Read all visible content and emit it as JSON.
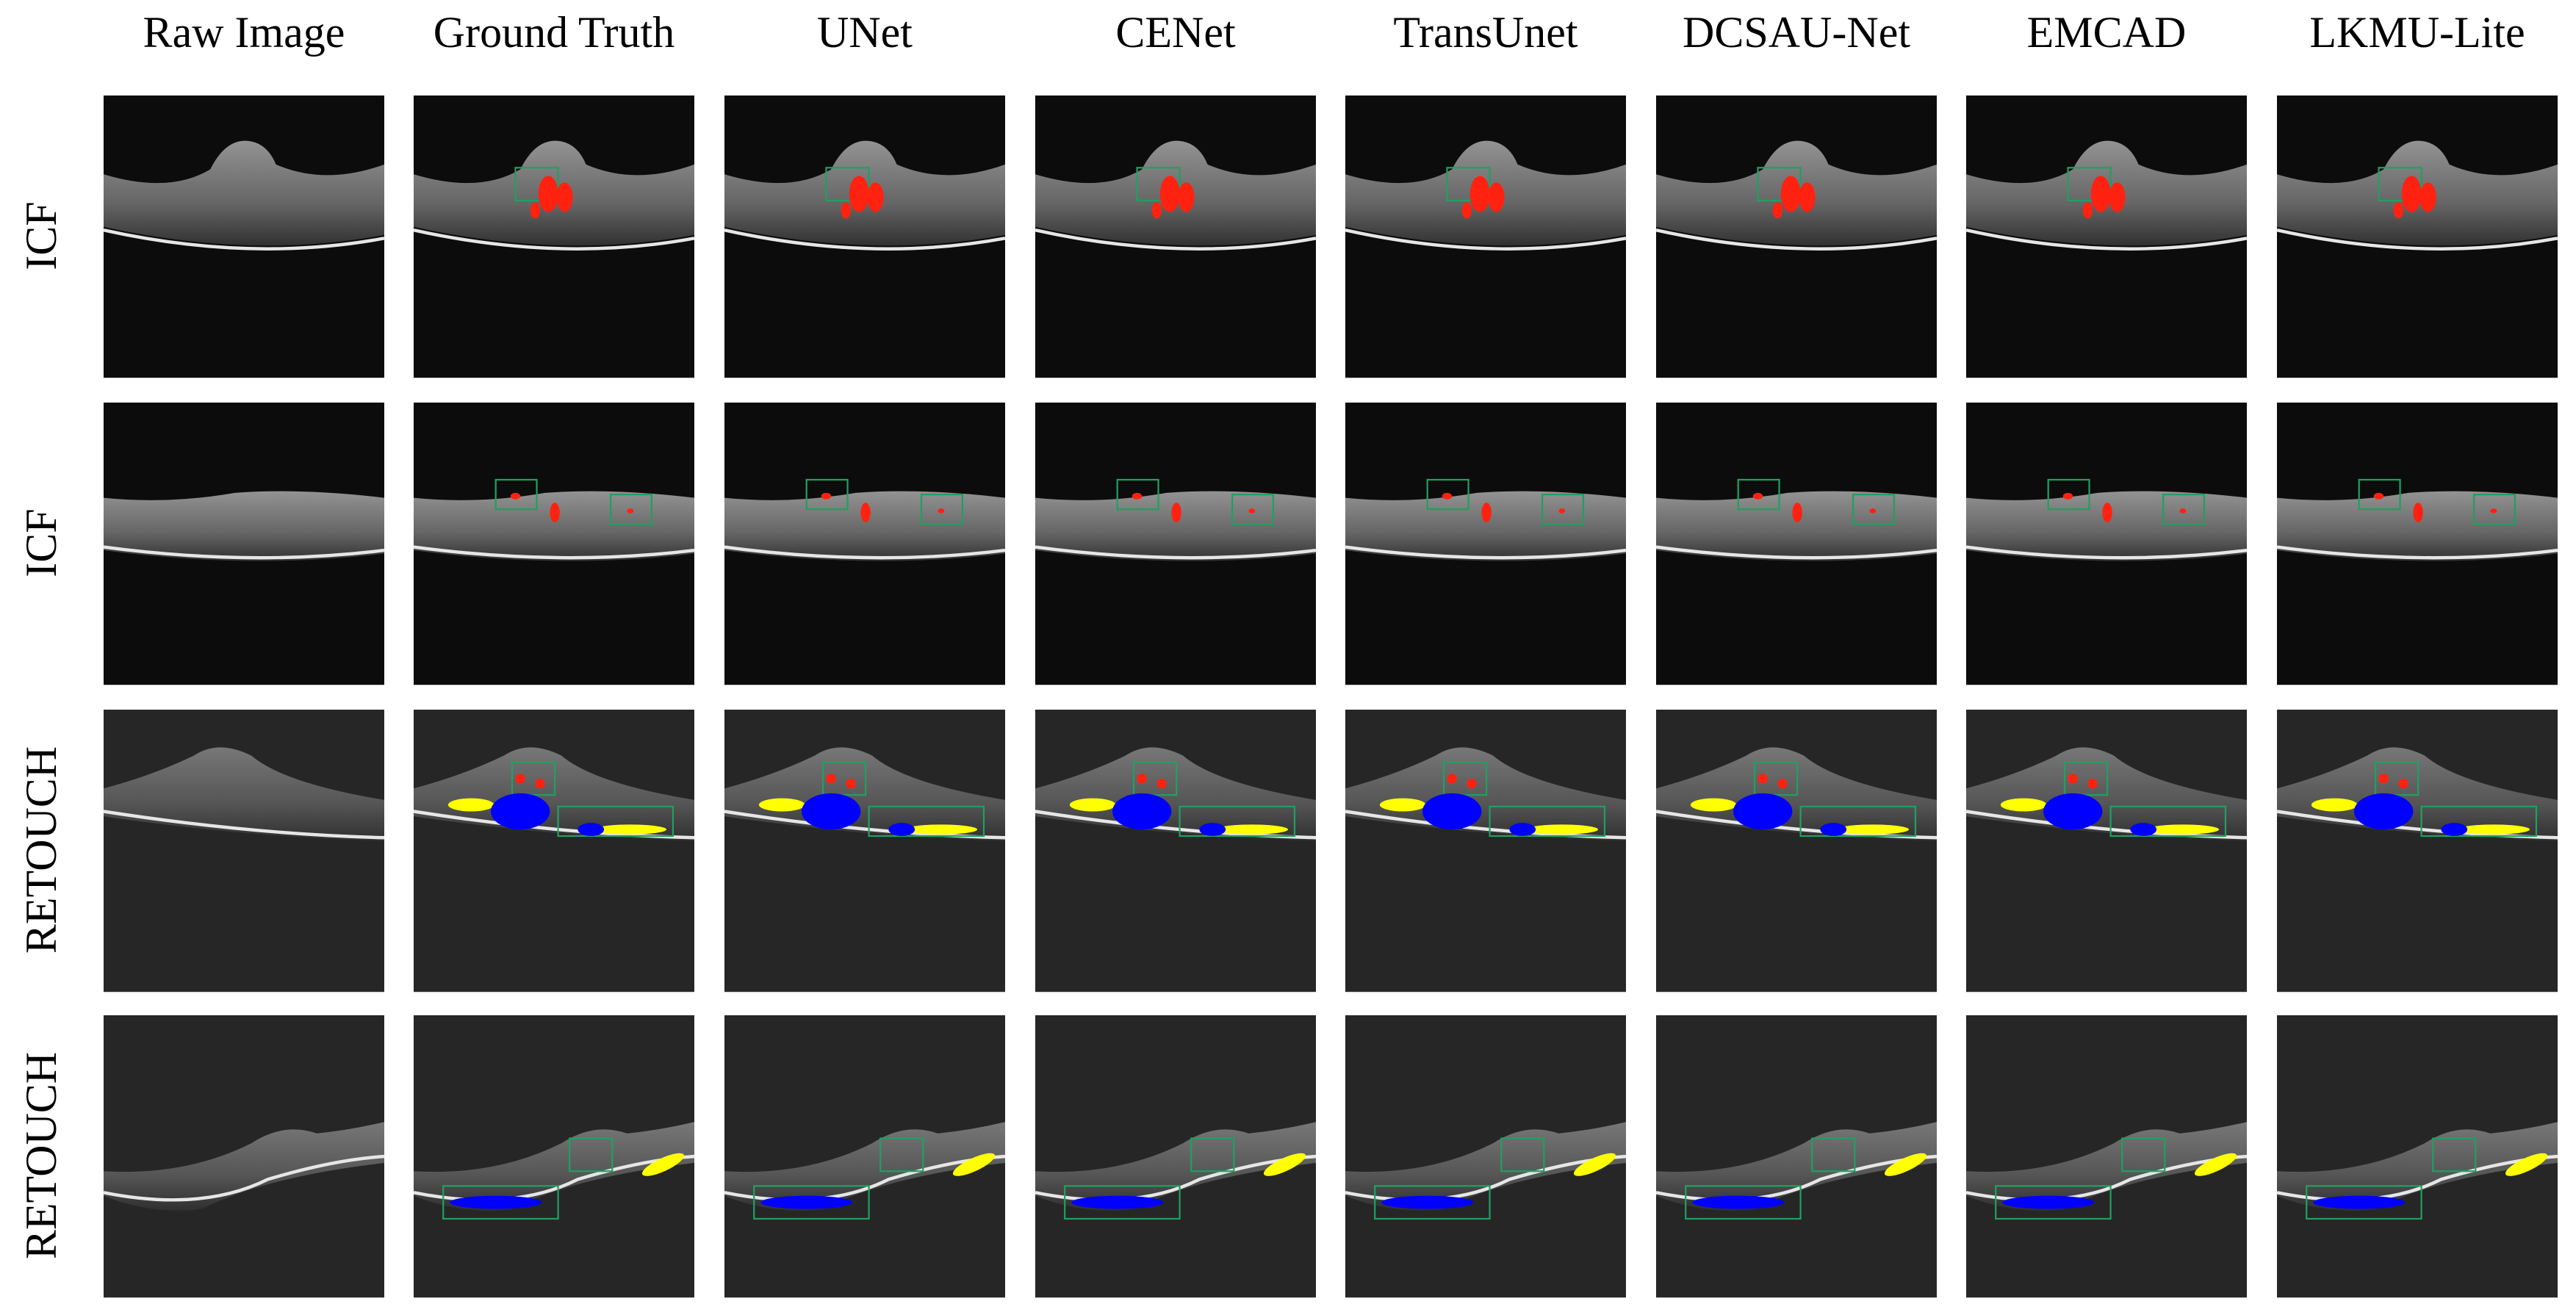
{
  "header": {
    "columns": [
      "Raw Image",
      "Ground Truth",
      "UNet",
      "CENet",
      "TransUnet",
      "DCSAU-Net",
      "EMCAD",
      "LKMU-Lite"
    ]
  },
  "rows": [
    {
      "label": "ICF"
    },
    {
      "label": "ICF"
    },
    {
      "label": "RETOUCH"
    },
    {
      "label": "RETOUCH"
    }
  ]
}
